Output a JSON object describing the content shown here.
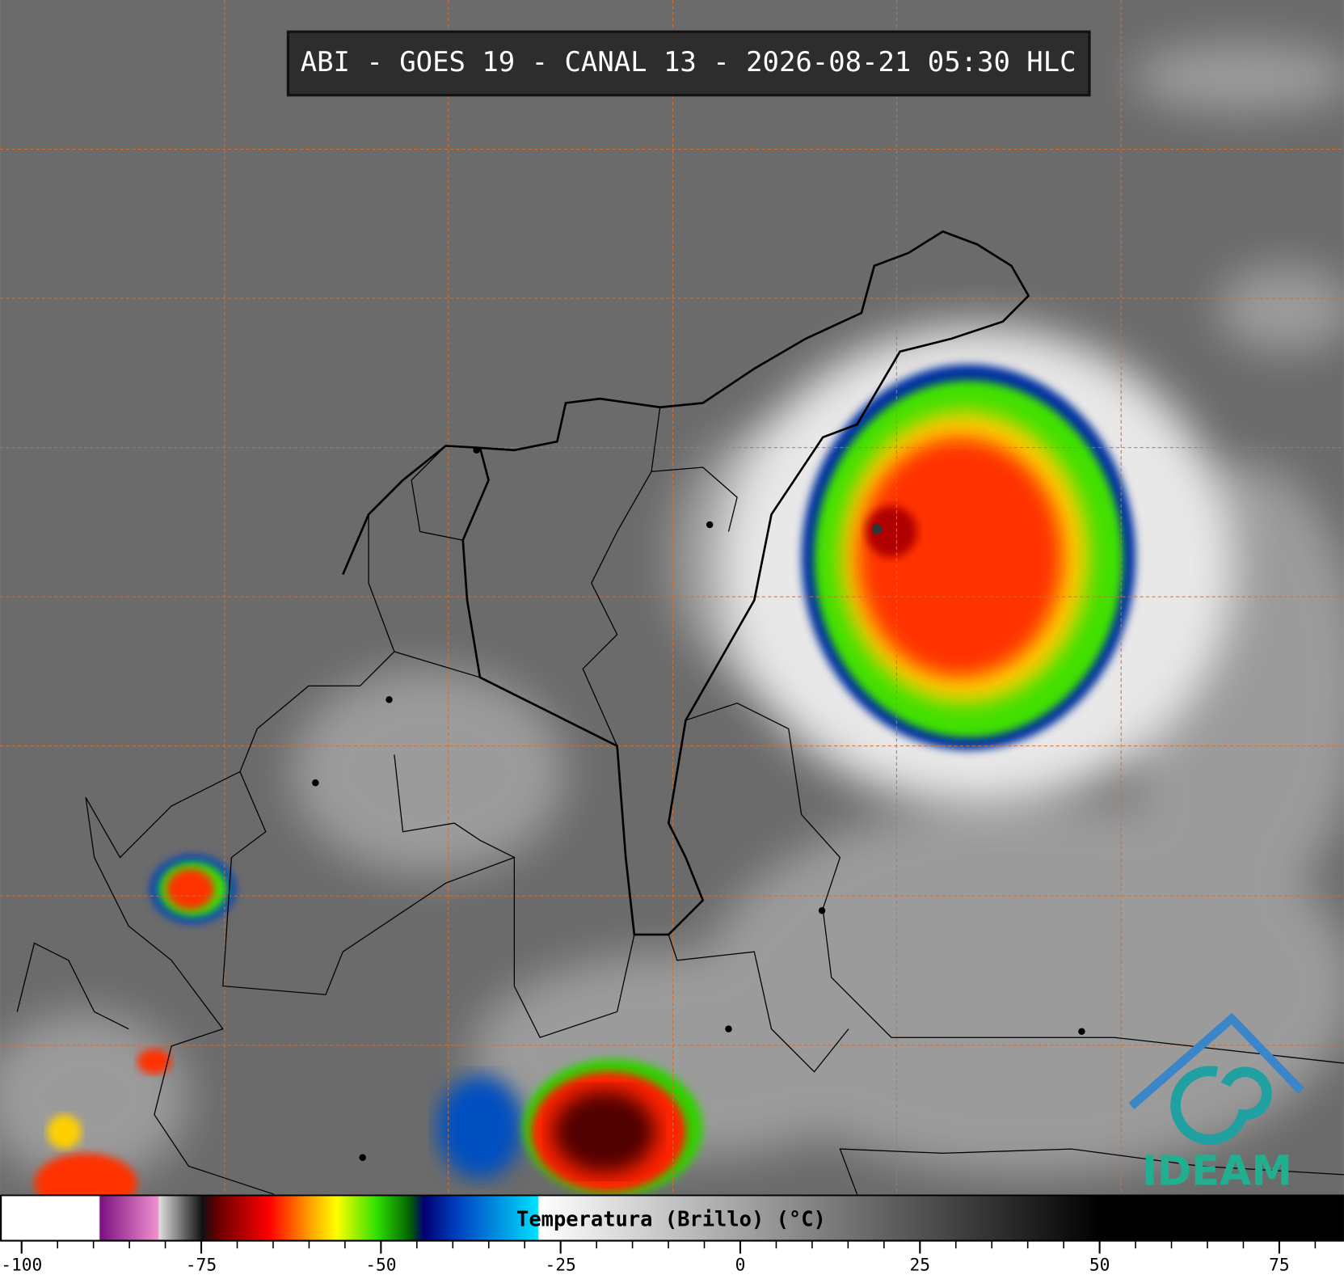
{
  "header": {
    "title": "ABI - GOES 19 - CANAL 13 - 2026-08-21 05:30 HLC"
  },
  "colorbar": {
    "label": "Temperatura (Brillo) (°C)",
    "lim": [
      -103,
      84
    ],
    "ticks": [
      -100,
      -75,
      -50,
      -25,
      0,
      25,
      50,
      75
    ]
  },
  "logo": {
    "text": "IDEAM"
  }
}
